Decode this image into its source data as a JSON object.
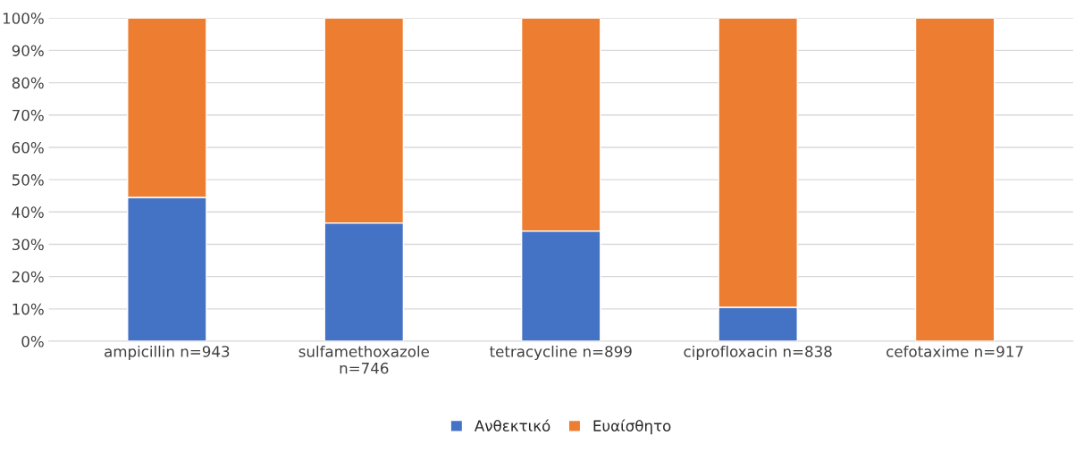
{
  "chart_data": {
    "type": "bar",
    "stacked": true,
    "categories": [
      "ampicillin n=943",
      "sulfamethoxazole\nn=746",
      "tetracycline n=899",
      "ciprofloxacin n=838",
      "cefotaxime n=917"
    ],
    "series": [
      {
        "name": "Ανθεκτικό",
        "color": "#4472c4",
        "values": [
          44.5,
          36.6,
          34.1,
          10.5,
          0
        ]
      },
      {
        "name": "Ευαίσθητο",
        "color": "#ed7d31",
        "values": [
          55.5,
          63.4,
          65.9,
          89.5,
          100
        ]
      }
    ],
    "ylim": [
      0,
      100
    ],
    "yticks": [
      {
        "value": 0,
        "label": "0%"
      },
      {
        "value": 10,
        "label": "10%"
      },
      {
        "value": 20,
        "label": "20%"
      },
      {
        "value": 30,
        "label": "30%"
      },
      {
        "value": 40,
        "label": "40%"
      },
      {
        "value": 50,
        "label": "50%"
      },
      {
        "value": 60,
        "label": "60%"
      },
      {
        "value": 70,
        "label": "70%"
      },
      {
        "value": 80,
        "label": "80%"
      },
      {
        "value": 90,
        "label": "90%"
      },
      {
        "value": 100,
        "label": "100%"
      }
    ],
    "grid": "y",
    "legend": "bottom"
  }
}
